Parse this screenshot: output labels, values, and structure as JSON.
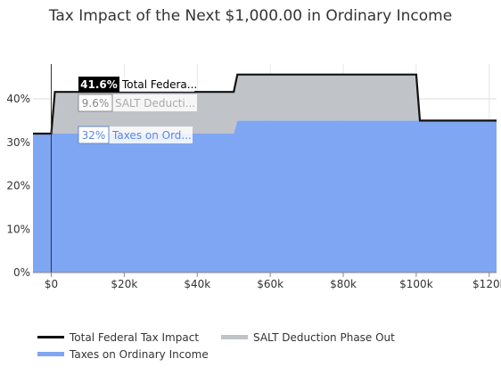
{
  "chart_data": {
    "type": "area",
    "title": "Tax Impact of the Next $1,000.00 in Ordinary Income",
    "xlabel": "",
    "ylabel": "",
    "xlim": [
      -5000,
      122000
    ],
    "ylim": [
      0,
      48
    ],
    "x_ticks": [
      0,
      20000,
      40000,
      60000,
      80000,
      100000,
      120000
    ],
    "x_tick_labels": [
      "$0",
      "$20k",
      "$40k",
      "$60k",
      "$80k",
      "$100k",
      "$120k"
    ],
    "y_ticks": [
      0,
      10,
      20,
      30,
      40
    ],
    "y_tick_labels": [
      "0%",
      "10%",
      "20%",
      "30%",
      "40%"
    ],
    "grid": true,
    "legend_position": "bottom",
    "series": [
      {
        "name": "Taxes on Ordinary Income",
        "color": "#7fa6f2",
        "points": [
          [
            -5000,
            32
          ],
          [
            50000,
            32
          ],
          [
            51000,
            35
          ],
          [
            122000,
            35
          ]
        ]
      },
      {
        "name": "SALT Deduction Phase Out",
        "color": "#c0c3c7",
        "points": [
          [
            -5000,
            0
          ],
          [
            0,
            0
          ],
          [
            1000,
            9.6
          ],
          [
            50000,
            9.6
          ],
          [
            51000,
            10.6
          ],
          [
            100000,
            10.6
          ],
          [
            101000,
            0
          ],
          [
            122000,
            0
          ]
        ]
      },
      {
        "name": "Total Federal Tax Impact",
        "color": "#111111",
        "points": [
          [
            -5000,
            32
          ],
          [
            0,
            32
          ],
          [
            1000,
            41.6
          ],
          [
            50000,
            41.6
          ],
          [
            51000,
            45.6
          ],
          [
            100000,
            45.6
          ],
          [
            101000,
            35
          ],
          [
            122000,
            35
          ]
        ]
      }
    ],
    "tooltip": {
      "x": 0,
      "items": [
        {
          "value": "41.6%",
          "label": "Total Federa..."
        },
        {
          "value": "9.6%",
          "label": "SALT Deducti..."
        },
        {
          "value": "32%",
          "label": "Taxes on Ord..."
        }
      ]
    },
    "legend": [
      {
        "label": "Total Federal Tax Impact",
        "color": "#111111"
      },
      {
        "label": "SALT Deduction Phase Out",
        "color": "#bfc3c7"
      },
      {
        "label": "Taxes on Ordinary Income",
        "color": "#7fa6f2"
      }
    ]
  }
}
